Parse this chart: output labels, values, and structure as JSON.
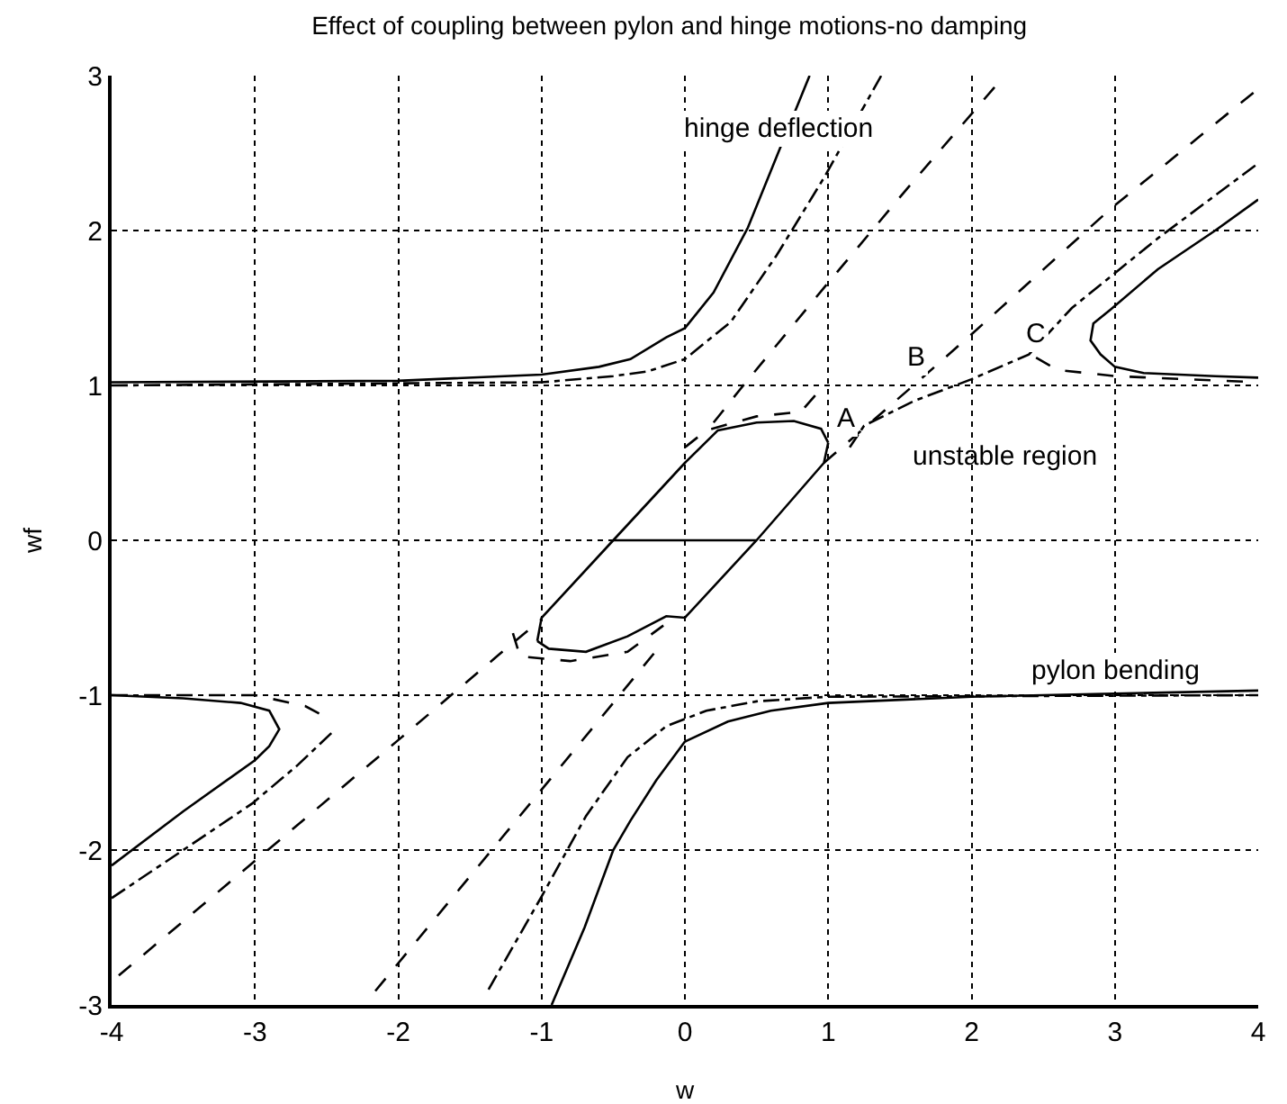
{
  "chart_data": {
    "type": "line",
    "title": "Effect of coupling between pylon and hinge motions-no damping",
    "xlabel": "w",
    "ylabel": "wf",
    "xlim": [
      -4,
      4
    ],
    "ylim": [
      -3,
      3
    ],
    "xticks": [
      -4,
      -3,
      -2,
      -1,
      0,
      1,
      2,
      3,
      4
    ],
    "yticks": [
      -3,
      -2,
      -1,
      0,
      1,
      2,
      3
    ],
    "grid": true,
    "marker": "none",
    "series": [
      {
        "color": "#000000",
        "line_style": "solid",
        "x": [
          -4,
          -2,
          -1,
          -0.6,
          -0.38,
          -0.13,
          0,
          0.2,
          0.44,
          0.65,
          0.87
        ],
        "values": [
          1.02,
          1.03,
          1.07,
          1.12,
          1.17,
          1.31,
          1.37,
          1.6,
          2.02,
          2.5,
          3
        ]
      },
      {
        "color": "#000000",
        "line_style": "solid",
        "x": [
          4,
          3.7,
          3.2,
          3.0,
          2.9,
          2.83,
          2.85,
          2.97,
          3.3,
          3.7,
          4
        ],
        "values": [
          1.05,
          1.06,
          1.08,
          1.12,
          1.2,
          1.29,
          1.4,
          1.49,
          1.75,
          2.0,
          2.2
        ]
      },
      {
        "color": "#000000",
        "line_style": "solid",
        "x": [
          -4,
          -3.5,
          -3.1,
          -2.9,
          -2.83,
          -2.9,
          -3,
          -3.5,
          -4
        ],
        "values": [
          -1.0,
          -1.02,
          -1.05,
          -1.1,
          -1.22,
          -1.33,
          -1.42,
          -1.75,
          -2.1
        ]
      },
      {
        "color": "#000000",
        "line_style": "solid",
        "x": [
          -0.93,
          -0.7,
          -0.5,
          -0.38,
          -0.2,
          0,
          0.3,
          0.6,
          1,
          2,
          4
        ],
        "values": [
          -3,
          -2.5,
          -2.0,
          -1.81,
          -1.55,
          -1.3,
          -1.17,
          -1.1,
          -1.05,
          -1.01,
          -0.97
        ]
      },
      {
        "color": "#000000",
        "line_style": "solid",
        "x": [
          -1.03,
          -1,
          -0.5,
          0,
          0.23,
          0.5,
          0.76,
          0.95,
          1.0
        ],
        "values": [
          -0.65,
          -0.5,
          0,
          0.5,
          0.71,
          0.76,
          0.77,
          0.72,
          0.63
        ]
      },
      {
        "color": "#000000",
        "line_style": "solid",
        "x": [
          -1.03,
          -0.95,
          -0.69,
          -0.4,
          -0.13,
          0,
          0.5,
          0.97,
          1.0
        ],
        "values": [
          -0.65,
          -0.7,
          -0.72,
          -0.62,
          -0.49,
          -0.5,
          0,
          0.5,
          0.63
        ]
      },
      {
        "color": "#000000",
        "line_style": "solid",
        "x": [
          -0.5,
          0.5
        ],
        "values": [
          0,
          0
        ]
      },
      {
        "color": "#000000",
        "line_style": "dashed",
        "x": [
          -3.95,
          -3,
          -2,
          -1.3,
          -1
        ],
        "values": [
          -2.81,
          -2.07,
          -1.29,
          -0.74,
          -0.51
        ]
      },
      {
        "color": "#000000",
        "line_style": "dashed",
        "x": [
          0.97,
          1.62,
          2,
          2.97,
          3.98
        ],
        "values": [
          0.5,
          1.02,
          1.33,
          2.14,
          2.9
        ]
      },
      {
        "color": "#000000",
        "line_style": "dashed",
        "x": [
          -2.16,
          -1.5,
          -1,
          -0.5,
          -0.18
        ],
        "values": [
          -2.91,
          -2.17,
          -1.61,
          -1.05,
          -0.69
        ]
      },
      {
        "color": "#000000",
        "line_style": "dashed",
        "x": [
          0.2,
          0.39,
          0.97,
          1.55,
          2.23
        ],
        "values": [
          0.76,
          0.98,
          1.63,
          2.27,
          3.0
        ]
      },
      {
        "color": "#000000",
        "line_style": "dashdot",
        "x": [
          -4,
          -1,
          -0.5,
          -0.26,
          0,
          0.32,
          0.64,
          0.97,
          1.37
        ],
        "values": [
          1.0,
          1.02,
          1.06,
          1.09,
          1.17,
          1.41,
          1.84,
          2.34,
          3.0
        ]
      },
      {
        "color": "#000000",
        "line_style": "dashdot",
        "x": [
          3.98,
          3.3,
          2.7,
          2.4,
          2.0,
          1.6,
          1.25,
          1.15
        ],
        "values": [
          2.42,
          1.95,
          1.5,
          1.2,
          1.04,
          0.9,
          0.74,
          0.6
        ]
      },
      {
        "color": "#000000",
        "line_style": "dashed",
        "x": [
          2.45,
          2.6,
          3,
          4
        ],
        "values": [
          1.18,
          1.1,
          1.06,
          1.02
        ]
      },
      {
        "color": "#000000",
        "line_style": "dashed",
        "x": [
          0,
          0.15,
          0.5,
          0.81,
          0.97
        ],
        "values": [
          0.6,
          0.71,
          0.8,
          0.83,
          1.0
        ]
      },
      {
        "color": "#000000",
        "line_style": "dashed",
        "x": [
          -1.2,
          -1.15,
          -0.8,
          -0.4,
          -0.15
        ],
        "values": [
          -0.6,
          -0.75,
          -0.78,
          -0.72,
          -0.55
        ]
      },
      {
        "color": "#000000",
        "line_style": "dashdot",
        "x": [
          -4,
          -3.5,
          -3.02,
          -2.7,
          -2.45
        ],
        "values": [
          -2.31,
          -2.0,
          -1.7,
          -1.45,
          -1.23
        ]
      },
      {
        "color": "#000000",
        "line_style": "dashed",
        "x": [
          -4,
          -3,
          -2.65,
          -2.55
        ],
        "values": [
          -1.0,
          -1.0,
          -1.07,
          -1.12
        ]
      },
      {
        "color": "#000000",
        "line_style": "dashdot",
        "x": [
          -1.37,
          -1,
          -0.69,
          -0.4,
          -0.13,
          0.15,
          0.5,
          1,
          4
        ],
        "values": [
          -2.9,
          -2.3,
          -1.78,
          -1.4,
          -1.2,
          -1.1,
          -1.04,
          -1.01,
          -1.0
        ]
      }
    ],
    "annotations": [
      {
        "text": "hinge deflection",
        "x": 0.65,
        "y": 2.5
      },
      {
        "text": "A",
        "x": 1.13,
        "y": 0.63
      },
      {
        "text": "B",
        "x": 1.62,
        "y": 1.02
      },
      {
        "text": "C",
        "x": 2.45,
        "y": 1.18
      },
      "unstable region",
      {
        "text": "pylon bending",
        "x": 3,
        "y": -1.0
      }
    ]
  }
}
